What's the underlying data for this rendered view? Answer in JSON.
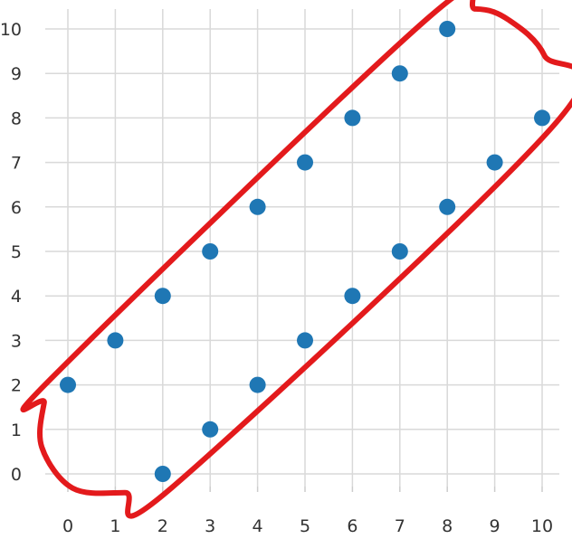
{
  "chart_data": {
    "type": "scatter",
    "title": "",
    "xlabel": "",
    "ylabel": "",
    "xlim": [
      0,
      10
    ],
    "ylim": [
      0,
      10
    ],
    "x_ticks": [
      "0",
      "1",
      "2",
      "3",
      "4",
      "5",
      "6",
      "7",
      "8",
      "9",
      "10"
    ],
    "y_ticks": [
      "0",
      "1",
      "2",
      "3",
      "4",
      "5",
      "6",
      "7",
      "8",
      "9",
      "10"
    ],
    "grid": true,
    "series": [
      {
        "points": [
          {
            "x": 0,
            "y": 2
          },
          {
            "x": 1,
            "y": 3
          },
          {
            "x": 2,
            "y": 4
          },
          {
            "x": 3,
            "y": 5
          },
          {
            "x": 4,
            "y": 6
          },
          {
            "x": 5,
            "y": 7
          },
          {
            "x": 6,
            "y": 8
          },
          {
            "x": 7,
            "y": 9
          },
          {
            "x": 8,
            "y": 10
          },
          {
            "x": 2,
            "y": 0
          },
          {
            "x": 3,
            "y": 1
          },
          {
            "x": 4,
            "y": 2
          },
          {
            "x": 5,
            "y": 3
          },
          {
            "x": 6,
            "y": 4
          },
          {
            "x": 7,
            "y": 5
          },
          {
            "x": 8,
            "y": 6
          },
          {
            "x": 9,
            "y": 7
          },
          {
            "x": 10,
            "y": 8
          }
        ]
      }
    ],
    "annotation": {
      "type": "enclosing-outline",
      "color": "#e31a1c",
      "outline": [
        {
          "x": -0.3,
          "y": 2.2
        },
        {
          "x": 7.6,
          "y": 10.25
        },
        {
          "x": 8.6,
          "y": 10.45
        },
        {
          "x": 9.3,
          "y": 10.2
        },
        {
          "x": 10.05,
          "y": 9.4
        },
        {
          "x": 10.3,
          "y": 7.9
        },
        {
          "x": 2.2,
          "y": -0.3
        },
        {
          "x": 1.2,
          "y": -0.42
        },
        {
          "x": 0.1,
          "y": -0.32
        },
        {
          "x": -0.55,
          "y": 0.6
        },
        {
          "x": -0.5,
          "y": 1.6
        }
      ]
    },
    "colors": {
      "points": "#1f77b4",
      "grid": "#d9d9d9",
      "text": "#333333"
    }
  }
}
